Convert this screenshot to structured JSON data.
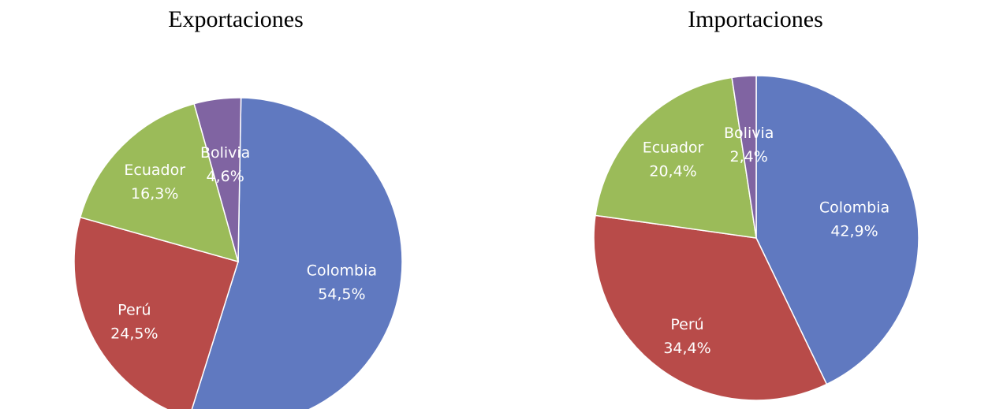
{
  "charts": [
    {
      "title": "Exportaciones"
    },
    {
      "title": "Importaciones"
    }
  ],
  "chart_data": [
    {
      "type": "pie",
      "title": "Exportaciones",
      "start_direction": "top",
      "order": "clockwise",
      "slices": [
        {
          "label": "Colombia",
          "value": 54.5,
          "value_text": "54,5%",
          "color": "#6079C0"
        },
        {
          "label": "Perú",
          "value": 24.5,
          "value_text": "24,5%",
          "color": "#B84B49"
        },
        {
          "label": "Ecuador",
          "value": 16.3,
          "value_text": "16,3%",
          "color": "#9BBB59"
        },
        {
          "label": "Bolivia",
          "value": 4.6,
          "value_text": "4,6%",
          "color": "#8064A2"
        }
      ]
    },
    {
      "type": "pie",
      "title": "Importaciones",
      "start_direction": "top",
      "order": "clockwise",
      "slices": [
        {
          "label": "Colombia",
          "value": 42.9,
          "value_text": "42,9%",
          "color": "#6079C0"
        },
        {
          "label": "Perú",
          "value": 34.4,
          "value_text": "34,4%",
          "color": "#B84B49"
        },
        {
          "label": "Ecuador",
          "value": 20.4,
          "value_text": "20,4%",
          "color": "#9BBB59"
        },
        {
          "label": "Bolivia",
          "value": 2.4,
          "value_text": "2,4%",
          "color": "#8064A2"
        }
      ]
    }
  ]
}
